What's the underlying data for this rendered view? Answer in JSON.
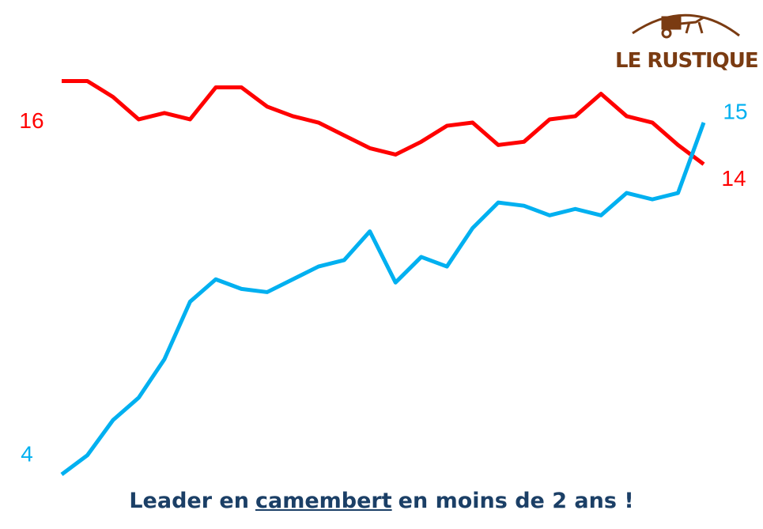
{
  "chart_data": {
    "type": "line",
    "title": [
      "Leader en",
      "camembert",
      "en moins de 2 ans !"
    ],
    "logo": "LE RUSTIQUE",
    "categories": [
      null,
      null,
      null,
      null,
      null,
      null,
      null,
      null,
      null,
      null,
      null,
      null,
      null,
      null,
      null,
      null,
      null,
      null,
      null,
      null,
      null,
      null,
      null,
      null,
      null,
      null
    ],
    "ylim": [
      4,
      16.4
    ],
    "series": [
      {
        "name": null,
        "color": "#ff0000",
        "values": [
          16.3,
          16.3,
          15.8,
          15.1,
          15.3,
          15.1,
          16.1,
          16.1,
          15.5,
          15.2,
          15.0,
          14.6,
          14.2,
          14.0,
          14.4,
          14.9,
          15.0,
          14.3,
          14.4,
          15.1,
          15.2,
          15.9,
          15.2,
          15.0,
          14.3,
          13.7
        ],
        "value_labels": [
          "16",
          null,
          null,
          null,
          null,
          null,
          null,
          null,
          null,
          null,
          null,
          null,
          null,
          null,
          null,
          null,
          null,
          null,
          null,
          null,
          null,
          null,
          null,
          null,
          null,
          "14"
        ]
      },
      {
        "name": null,
        "color": "#00b0f0",
        "values": [
          4.0,
          4.6,
          5.7,
          6.4,
          7.6,
          9.4,
          10.1,
          9.8,
          9.7,
          10.1,
          10.5,
          10.7,
          11.6,
          10.0,
          10.8,
          10.5,
          11.7,
          12.5,
          12.4,
          12.1,
          12.3,
          12.1,
          12.8,
          12.6,
          12.8,
          15.0
        ],
        "value_labels": [
          "4",
          null,
          null,
          null,
          null,
          null,
          null,
          null,
          null,
          null,
          null,
          null,
          null,
          null,
          null,
          null,
          null,
          null,
          null,
          null,
          null,
          null,
          null,
          null,
          null,
          "15"
        ]
      }
    ]
  }
}
